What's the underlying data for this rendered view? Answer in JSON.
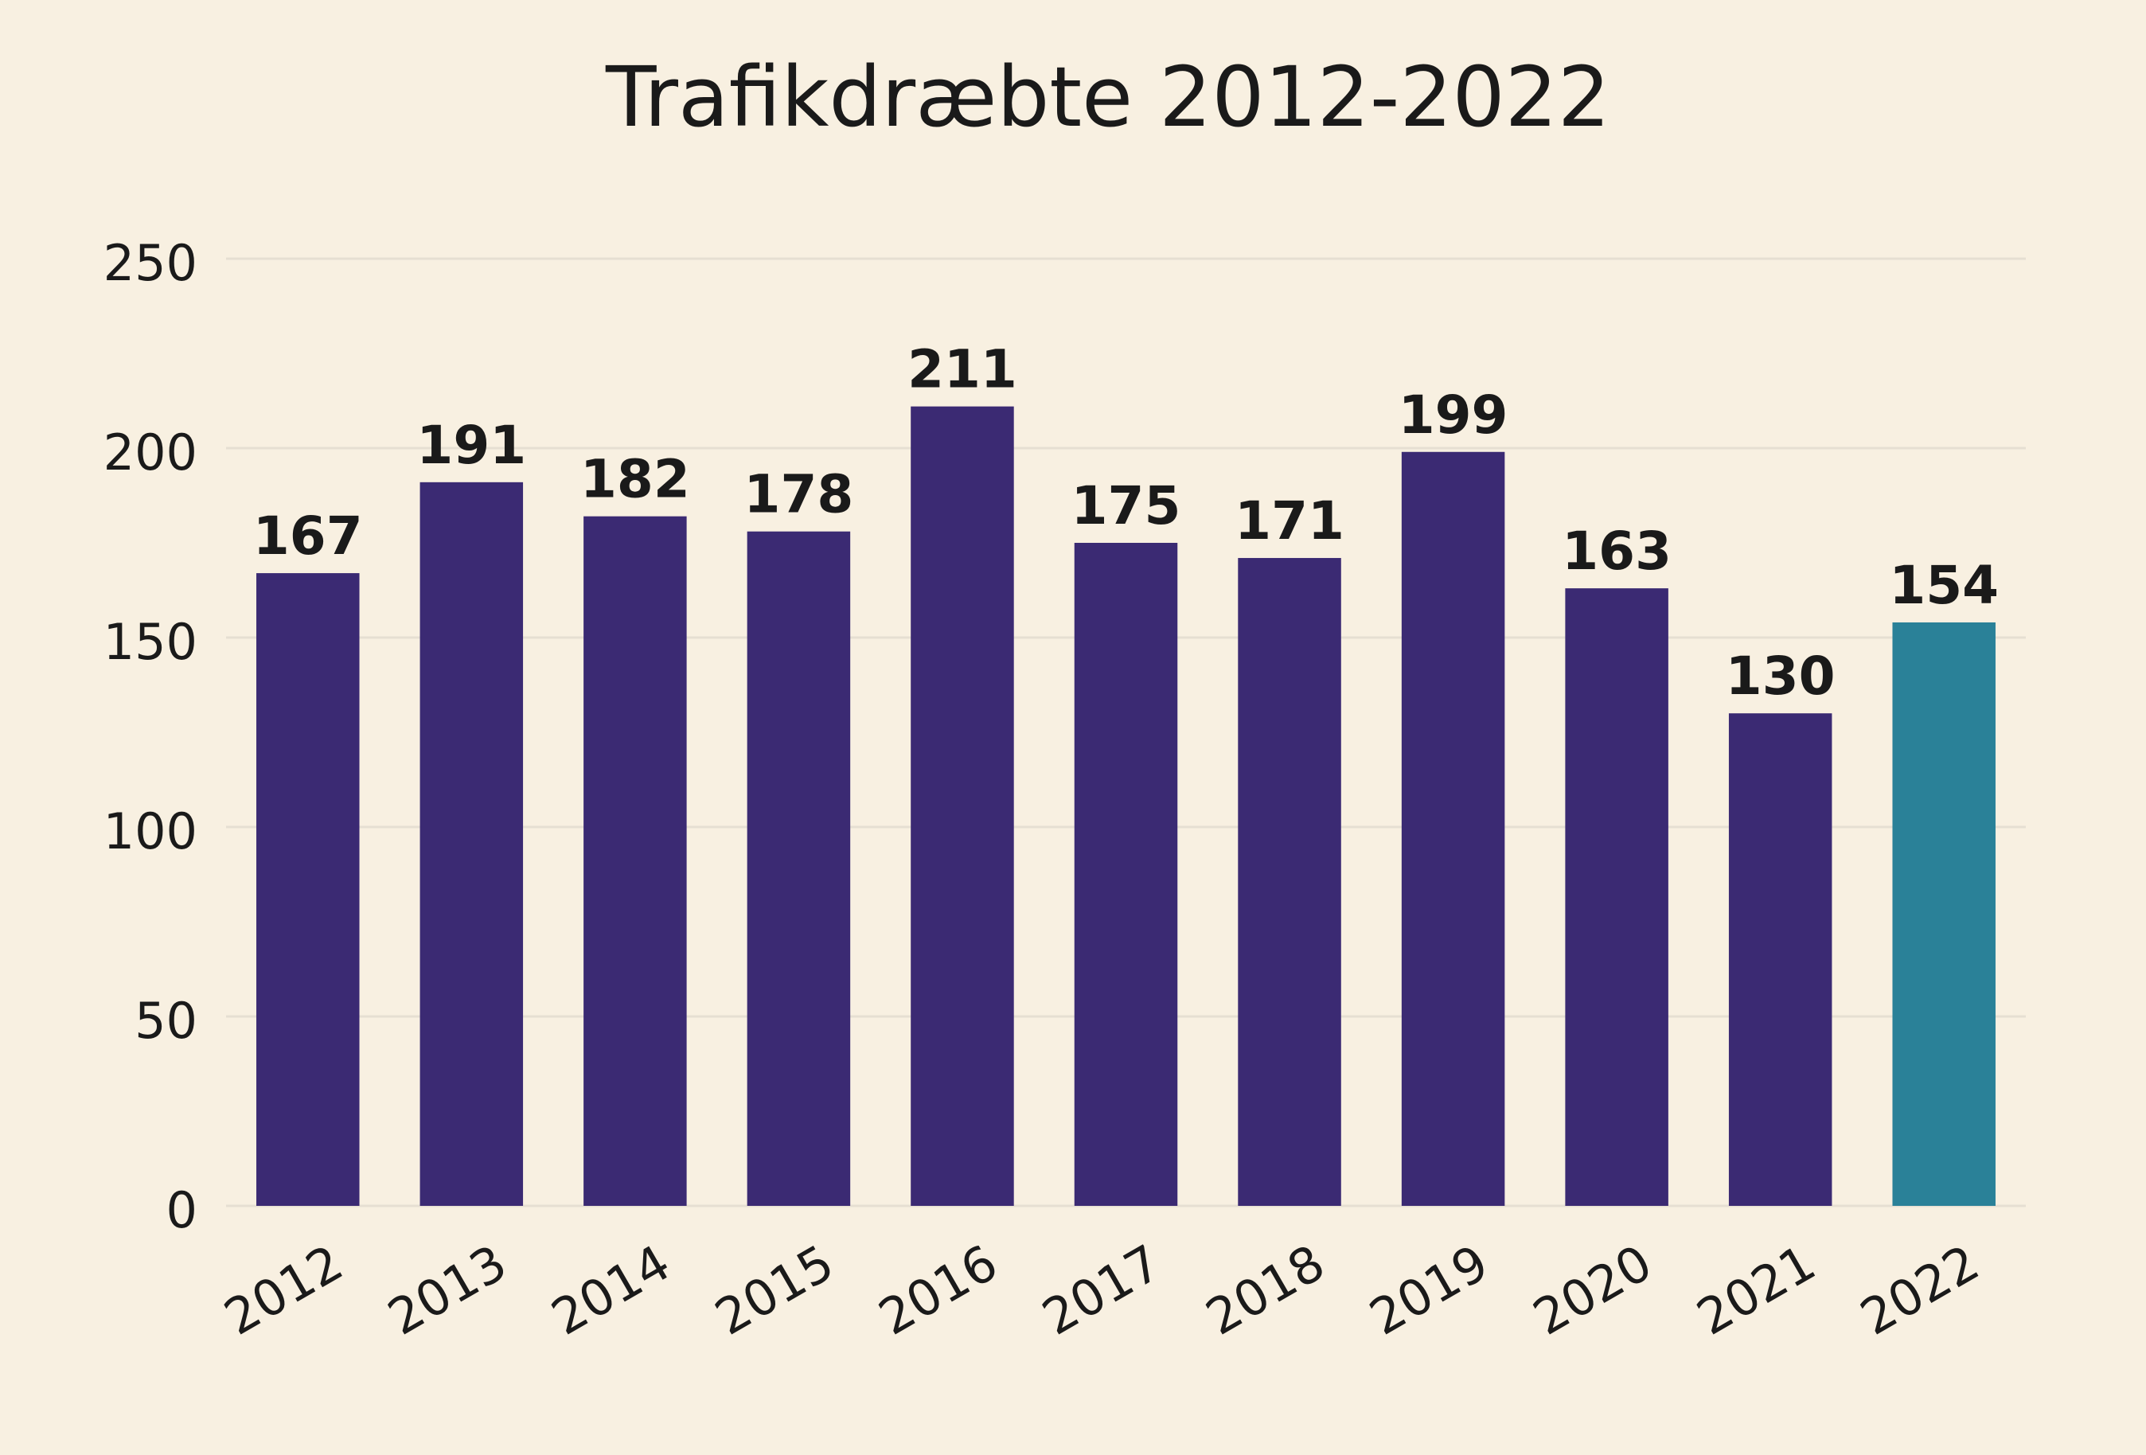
{
  "chart_data": {
    "type": "bar",
    "title": "Trafikdræbte 2012-2022",
    "categories": [
      "2012",
      "2013",
      "2014",
      "2015",
      "2016",
      "2017",
      "2018",
      "2019",
      "2020",
      "2021",
      "2022"
    ],
    "values": [
      167,
      191,
      182,
      178,
      211,
      175,
      171,
      199,
      163,
      130,
      154
    ],
    "colors": [
      "#3b2a73",
      "#3b2a73",
      "#3b2a73",
      "#3b2a73",
      "#3b2a73",
      "#3b2a73",
      "#3b2a73",
      "#3b2a73",
      "#3b2a73",
      "#3b2a73",
      "#2a8198"
    ],
    "ylim": [
      0,
      250
    ],
    "yticks": [
      0,
      50,
      100,
      150,
      200,
      250
    ],
    "grid": true
  }
}
